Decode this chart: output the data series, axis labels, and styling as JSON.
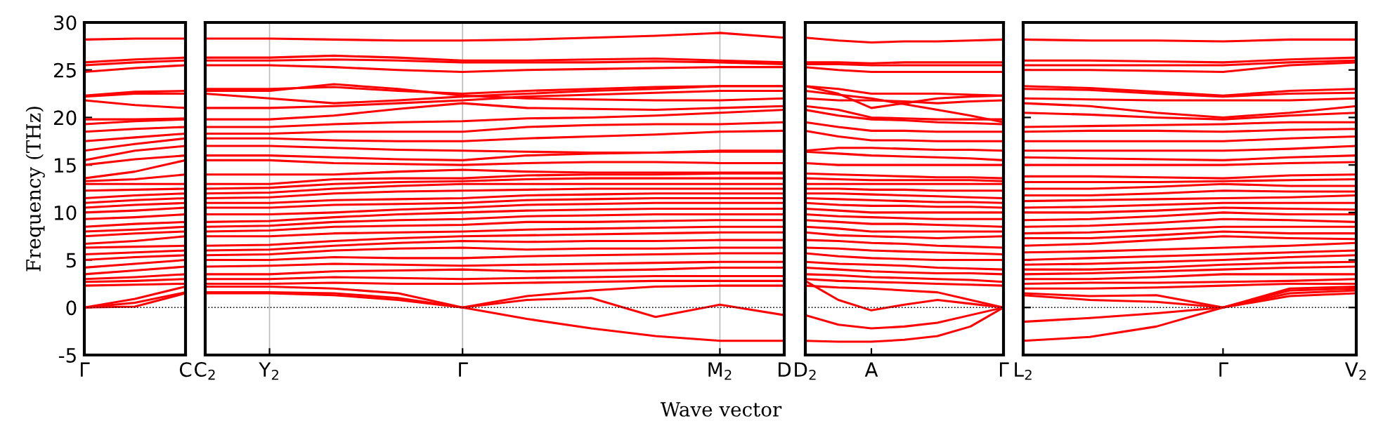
{
  "chart_data": [
    {
      "type": "line",
      "ylabel": "Frequency (THz)",
      "categories": [
        "Γ",
        null,
        "C"
      ],
      "ylim": [
        -5,
        30
      ],
      "yticks": [
        -5,
        0,
        5,
        10,
        15,
        20,
        25,
        30
      ],
      "ref_lines": [
        {
          "axis": "y",
          "value": 0,
          "color": "#000000",
          "line_style": "dotted"
        }
      ],
      "series": [
        {
          "color": "#ff0000",
          "values": [
            0,
            0.1,
            1.5
          ]
        },
        {
          "color": "#ff0000",
          "values": [
            0,
            0.5,
            1.6
          ]
        },
        {
          "color": "#ff0000",
          "values": [
            0,
            0.9,
            2.2
          ]
        },
        {
          "color": "#ff0000",
          "values": [
            2.3,
            2.4,
            2.5
          ]
        },
        {
          "color": "#ff0000",
          "values": [
            2.7,
            2.8,
            3.0
          ]
        },
        {
          "color": "#ff0000",
          "values": [
            3.0,
            3.2,
            3.5
          ]
        },
        {
          "color": "#ff0000",
          "values": [
            3.5,
            3.9,
            4.3
          ]
        },
        {
          "color": "#ff0000",
          "values": [
            4.2,
            4.6,
            5.0
          ]
        },
        {
          "color": "#ff0000",
          "values": [
            5.0,
            5.3,
            5.5
          ]
        },
        {
          "color": "#ff0000",
          "values": [
            5.6,
            5.8,
            6.0
          ]
        },
        {
          "color": "#ff0000",
          "values": [
            6.3,
            6.4,
            6.5
          ]
        },
        {
          "color": "#ff0000",
          "values": [
            6.7,
            7.0,
            7.5
          ]
        },
        {
          "color": "#ff0000",
          "values": [
            7.5,
            7.8,
            8.0
          ]
        },
        {
          "color": "#ff0000",
          "values": [
            8.0,
            8.2,
            8.5
          ]
        },
        {
          "color": "#ff0000",
          "values": [
            8.5,
            8.8,
            9.0
          ]
        },
        {
          "color": "#ff0000",
          "values": [
            9.3,
            9.5,
            9.8
          ]
        },
        {
          "color": "#ff0000",
          "values": [
            10.0,
            10.2,
            10.5
          ]
        },
        {
          "color": "#ff0000",
          "values": [
            10.5,
            10.8,
            11.0
          ]
        },
        {
          "color": "#ff0000",
          "values": [
            11.0,
            11.3,
            11.5
          ]
        },
        {
          "color": "#ff0000",
          "values": [
            11.5,
            11.8,
            12.0
          ]
        },
        {
          "color": "#ff0000",
          "values": [
            12.3,
            12.4,
            12.5
          ]
        },
        {
          "color": "#ff0000",
          "values": [
            13.0,
            13.0,
            13.0
          ]
        },
        {
          "color": "#ff0000",
          "values": [
            13.3,
            13.5,
            14.0
          ]
        },
        {
          "color": "#ff0000",
          "values": [
            13.6,
            14.3,
            15.5
          ]
        },
        {
          "color": "#ff0000",
          "values": [
            15.0,
            15.6,
            16.0
          ]
        },
        {
          "color": "#ff0000",
          "values": [
            15.5,
            16.5,
            17.0
          ]
        },
        {
          "color": "#ff0000",
          "values": [
            16.5,
            17.2,
            17.8
          ]
        },
        {
          "color": "#ff0000",
          "values": [
            17.5,
            17.9,
            18.3
          ]
        },
        {
          "color": "#ff0000",
          "values": [
            18.5,
            18.8,
            19.0
          ]
        },
        {
          "color": "#ff0000",
          "values": [
            19.3,
            19.6,
            19.8
          ]
        },
        {
          "color": "#ff0000",
          "values": [
            19.8,
            19.8,
            19.9
          ]
        },
        {
          "color": "#ff0000",
          "values": [
            21.8,
            21.3,
            21.0
          ]
        },
        {
          "color": "#ff0000",
          "values": [
            22.2,
            22.5,
            22.5
          ]
        },
        {
          "color": "#ff0000",
          "values": [
            22.3,
            22.7,
            22.8
          ]
        },
        {
          "color": "#ff0000",
          "values": [
            24.8,
            25.2,
            25.5
          ]
        },
        {
          "color": "#ff0000",
          "values": [
            25.5,
            25.8,
            26.0
          ]
        },
        {
          "color": "#ff0000",
          "values": [
            25.8,
            26.1,
            26.3
          ]
        },
        {
          "color": "#ff0000",
          "values": [
            28.2,
            28.3,
            28.3
          ]
        }
      ]
    },
    {
      "type": "line",
      "xlabel": "Wave vector",
      "categories": [
        "C$_{2}$",
        "Y$_{2}$",
        null,
        null,
        "Γ",
        null,
        null,
        null,
        "M$_{2}$",
        "D"
      ],
      "ylim": [
        -5,
        30
      ],
      "yticks": [
        -5,
        0,
        5,
        10,
        15,
        20,
        25,
        30
      ],
      "grid": "x",
      "ref_lines": [
        {
          "axis": "y",
          "value": 0,
          "color": "#000000",
          "line_style": "dotted"
        }
      ],
      "tick_labels": "x",
      "series": [
        {
          "color": "#ff0000",
          "values": [
            1.5,
            1.5,
            1.3,
            0.8,
            0,
            -1.2,
            -2.2,
            -3.0,
            -3.5,
            -3.5
          ]
        },
        {
          "color": "#ff0000",
          "values": [
            1.6,
            1.6,
            1.5,
            1.0,
            0,
            0.8,
            1.0,
            -1.0,
            0.3,
            -0.8
          ]
        },
        {
          "color": "#ff0000",
          "values": [
            2.2,
            2.2,
            2.0,
            1.5,
            0,
            1.2,
            1.8,
            2.2,
            2.3,
            2.3
          ]
        },
        {
          "color": "#ff0000",
          "values": [
            2.5,
            2.5,
            2.6,
            2.5,
            2.5,
            2.6,
            2.7,
            2.8,
            2.8,
            2.8
          ]
        },
        {
          "color": "#ff0000",
          "values": [
            3.0,
            3.0,
            3.2,
            3.1,
            3.0,
            3.1,
            3.2,
            3.3,
            3.3,
            3.3
          ]
        },
        {
          "color": "#ff0000",
          "values": [
            3.5,
            3.5,
            3.8,
            3.9,
            4.0,
            3.8,
            3.9,
            4.0,
            4.2,
            4.2
          ]
        },
        {
          "color": "#ff0000",
          "values": [
            4.3,
            4.4,
            4.6,
            4.5,
            4.4,
            4.5,
            4.6,
            4.7,
            4.8,
            4.8
          ]
        },
        {
          "color": "#ff0000",
          "values": [
            5.0,
            5.0,
            5.3,
            5.2,
            5.2,
            5.4,
            5.5,
            5.6,
            5.7,
            5.7
          ]
        },
        {
          "color": "#ff0000",
          "values": [
            5.5,
            5.6,
            6.0,
            6.2,
            6.3,
            6.1,
            6.2,
            6.2,
            6.3,
            6.3
          ]
        },
        {
          "color": "#ff0000",
          "values": [
            6.0,
            6.1,
            6.5,
            6.8,
            7.0,
            6.9,
            7.0,
            7.0,
            7.1,
            7.1
          ]
        },
        {
          "color": "#ff0000",
          "values": [
            6.5,
            6.6,
            7.0,
            7.3,
            7.5,
            7.6,
            7.7,
            7.8,
            7.9,
            7.9
          ]
        },
        {
          "color": "#ff0000",
          "values": [
            7.5,
            7.5,
            7.8,
            7.9,
            8.0,
            8.2,
            8.3,
            8.4,
            8.5,
            8.5
          ]
        },
        {
          "color": "#ff0000",
          "values": [
            8.0,
            8.1,
            8.5,
            8.6,
            8.7,
            9.0,
            9.0,
            9.1,
            9.2,
            9.2
          ]
        },
        {
          "color": "#ff0000",
          "values": [
            8.5,
            8.6,
            9.0,
            9.2,
            9.3,
            9.6,
            9.7,
            9.8,
            9.8,
            9.8
          ]
        },
        {
          "color": "#ff0000",
          "values": [
            9.0,
            9.1,
            9.5,
            9.8,
            10.0,
            10.2,
            10.3,
            10.4,
            10.4,
            10.4
          ]
        },
        {
          "color": "#ff0000",
          "values": [
            9.8,
            9.8,
            10.0,
            10.3,
            10.5,
            10.8,
            10.9,
            11.0,
            11.0,
            11.0
          ]
        },
        {
          "color": "#ff0000",
          "values": [
            10.5,
            10.5,
            10.8,
            10.9,
            11.0,
            11.3,
            11.4,
            11.5,
            11.5,
            11.5
          ]
        },
        {
          "color": "#ff0000",
          "values": [
            11.0,
            11.0,
            11.3,
            11.4,
            11.5,
            11.8,
            11.9,
            12.0,
            12.0,
            12.0
          ]
        },
        {
          "color": "#ff0000",
          "values": [
            11.5,
            11.6,
            12.0,
            12.2,
            12.3,
            12.4,
            12.5,
            12.5,
            12.5,
            12.5
          ]
        },
        {
          "color": "#ff0000",
          "values": [
            12.0,
            12.1,
            12.5,
            12.8,
            13.0,
            13.0,
            13.0,
            13.0,
            13.0,
            13.0
          ]
        },
        {
          "color": "#ff0000",
          "values": [
            12.5,
            12.6,
            13.0,
            13.2,
            13.3,
            13.5,
            13.6,
            13.6,
            13.6,
            13.6
          ]
        },
        {
          "color": "#ff0000",
          "values": [
            13.0,
            13.0,
            13.5,
            13.6,
            13.6,
            13.9,
            14.0,
            14.0,
            14.1,
            14.1
          ]
        },
        {
          "color": "#ff0000",
          "values": [
            14.0,
            14.0,
            14.0,
            14.3,
            14.5,
            14.3,
            14.2,
            14.2,
            14.2,
            14.2
          ]
        },
        {
          "color": "#ff0000",
          "values": [
            15.5,
            15.5,
            15.2,
            15.1,
            15.0,
            15.2,
            15.3,
            15.3,
            15.2,
            15.2
          ]
        },
        {
          "color": "#ff0000",
          "values": [
            16.0,
            16.0,
            15.8,
            15.6,
            15.5,
            16.0,
            16.2,
            16.3,
            16.5,
            16.5
          ]
        },
        {
          "color": "#ff0000",
          "values": [
            17.0,
            17.0,
            16.8,
            16.6,
            16.5,
            16.4,
            16.3,
            16.3,
            16.4,
            16.4
          ]
        },
        {
          "color": "#ff0000",
          "values": [
            17.8,
            17.8,
            17.6,
            17.5,
            17.5,
            17.8,
            18.0,
            18.2,
            18.5,
            18.6
          ]
        },
        {
          "color": "#ff0000",
          "values": [
            18.3,
            18.3,
            18.5,
            18.5,
            18.5,
            19.0,
            19.2,
            19.3,
            19.3,
            19.5
          ]
        },
        {
          "color": "#ff0000",
          "values": [
            19.0,
            19.0,
            19.3,
            19.5,
            19.6,
            19.9,
            20.0,
            20.2,
            20.5,
            20.8
          ]
        },
        {
          "color": "#ff0000",
          "values": [
            19.8,
            19.8,
            20.2,
            20.9,
            21.5,
            21.0,
            20.9,
            20.8,
            21.0,
            21.2
          ]
        },
        {
          "color": "#ff0000",
          "values": [
            21.0,
            21.0,
            21.2,
            21.5,
            21.8,
            22.2,
            22.4,
            22.6,
            22.8,
            22.8
          ]
        },
        {
          "color": "#ff0000",
          "values": [
            22.5,
            22.0,
            21.5,
            21.8,
            22.2,
            22.5,
            22.8,
            23.0,
            23.3,
            23.3
          ]
        },
        {
          "color": "#ff0000",
          "values": [
            22.8,
            22.8,
            23.5,
            23.0,
            22.3,
            22.0,
            21.9,
            21.8,
            21.8,
            22.0
          ]
        },
        {
          "color": "#ff0000",
          "values": [
            23.0,
            23.0,
            23.2,
            22.8,
            22.5,
            22.8,
            23.0,
            23.2,
            23.3,
            23.3
          ]
        },
        {
          "color": "#ff0000",
          "values": [
            25.5,
            25.5,
            25.3,
            25.0,
            24.8,
            25.0,
            25.1,
            25.2,
            25.3,
            25.3
          ]
        },
        {
          "color": "#ff0000",
          "values": [
            26.0,
            26.0,
            26.1,
            26.0,
            25.8,
            25.8,
            25.8,
            25.9,
            25.8,
            25.6
          ]
        },
        {
          "color": "#ff0000",
          "values": [
            26.3,
            26.3,
            26.5,
            26.3,
            26.0,
            26.0,
            26.1,
            26.2,
            26.0,
            25.8
          ]
        },
        {
          "color": "#ff0000",
          "values": [
            28.3,
            28.3,
            28.2,
            28.1,
            28.1,
            28.2,
            28.4,
            28.6,
            28.9,
            28.4
          ]
        }
      ]
    },
    {
      "type": "line",
      "categories": [
        "D$_{2}$",
        null,
        "A",
        null,
        null,
        null,
        "Γ"
      ],
      "ylim": [
        -5,
        30
      ],
      "yticks": [
        -5,
        0,
        5,
        10,
        15,
        20,
        25,
        30
      ],
      "ref_lines": [
        {
          "axis": "y",
          "value": 0,
          "color": "#000000",
          "line_style": "dotted"
        }
      ],
      "tick_labels": "x",
      "series": [
        {
          "color": "#ff0000",
          "values": [
            -3.5,
            -3.6,
            -3.6,
            -3.4,
            -3.0,
            -2.0,
            0
          ]
        },
        {
          "color": "#ff0000",
          "values": [
            -0.8,
            -1.8,
            -2.2,
            -2.0,
            -1.6,
            -0.8,
            0
          ]
        },
        {
          "color": "#ff0000",
          "values": [
            2.8,
            0.8,
            -0.3,
            0.3,
            0.8,
            0.4,
            0
          ]
        },
        {
          "color": "#ff0000",
          "values": [
            2.3,
            2.1,
            2.0,
            1.8,
            1.6,
            0.8,
            0
          ]
        },
        {
          "color": "#ff0000",
          "values": [
            3.0,
            2.8,
            2.7,
            2.6,
            2.5,
            2.4,
            2.3
          ]
        },
        {
          "color": "#ff0000",
          "values": [
            3.5,
            3.4,
            3.2,
            3.1,
            3.0,
            2.9,
            2.7
          ]
        },
        {
          "color": "#ff0000",
          "values": [
            4.2,
            4.0,
            3.8,
            3.7,
            3.6,
            3.6,
            3.5
          ]
        },
        {
          "color": "#ff0000",
          "values": [
            4.8,
            4.6,
            4.5,
            4.4,
            4.2,
            4.1,
            4.0
          ]
        },
        {
          "color": "#ff0000",
          "values": [
            5.7,
            5.4,
            5.2,
            5.1,
            5.0,
            5.0,
            5.0
          ]
        },
        {
          "color": "#ff0000",
          "values": [
            6.3,
            6.2,
            6.0,
            5.9,
            5.8,
            5.7,
            5.6
          ]
        },
        {
          "color": "#ff0000",
          "values": [
            7.1,
            7.0,
            6.8,
            6.7,
            6.5,
            6.4,
            6.3
          ]
        },
        {
          "color": "#ff0000",
          "values": [
            7.9,
            7.6,
            7.5,
            7.4,
            7.3,
            7.4,
            7.5
          ]
        },
        {
          "color": "#ff0000",
          "values": [
            8.5,
            8.3,
            8.0,
            8.0,
            8.0,
            8.0,
            8.0
          ]
        },
        {
          "color": "#ff0000",
          "values": [
            9.2,
            9.0,
            8.8,
            8.8,
            8.7,
            8.6,
            8.5
          ]
        },
        {
          "color": "#ff0000",
          "values": [
            9.8,
            9.6,
            9.5,
            9.4,
            9.3,
            9.3,
            9.3
          ]
        },
        {
          "color": "#ff0000",
          "values": [
            10.4,
            10.2,
            10.0,
            10.0,
            10.0,
            10.0,
            10.0
          ]
        },
        {
          "color": "#ff0000",
          "values": [
            11.0,
            10.8,
            10.7,
            10.7,
            10.6,
            10.6,
            10.5
          ]
        },
        {
          "color": "#ff0000",
          "values": [
            11.5,
            11.4,
            11.3,
            11.2,
            11.1,
            11.1,
            11.0
          ]
        },
        {
          "color": "#ff0000",
          "values": [
            12.0,
            12.0,
            11.9,
            11.8,
            11.7,
            11.6,
            11.5
          ]
        },
        {
          "color": "#ff0000",
          "values": [
            12.5,
            12.5,
            12.4,
            12.4,
            12.3,
            12.3,
            12.3
          ]
        },
        {
          "color": "#ff0000",
          "values": [
            13.0,
            13.0,
            13.0,
            13.0,
            13.0,
            13.0,
            13.0
          ]
        },
        {
          "color": "#ff0000",
          "values": [
            13.6,
            13.5,
            13.4,
            13.4,
            13.4,
            13.4,
            13.3
          ]
        },
        {
          "color": "#ff0000",
          "values": [
            14.1,
            14.0,
            13.9,
            13.8,
            13.7,
            13.7,
            13.6
          ]
        },
        {
          "color": "#ff0000",
          "values": [
            15.2,
            15.0,
            15.0,
            15.0,
            15.0,
            15.0,
            15.0
          ]
        },
        {
          "color": "#ff0000",
          "values": [
            16.4,
            16.2,
            16.0,
            15.9,
            15.8,
            15.7,
            15.5
          ]
        },
        {
          "color": "#ff0000",
          "values": [
            16.5,
            16.8,
            16.8,
            16.7,
            16.6,
            16.6,
            16.5
          ]
        },
        {
          "color": "#ff0000",
          "values": [
            18.6,
            18.0,
            17.6,
            17.6,
            17.5,
            17.5,
            17.5
          ]
        },
        {
          "color": "#ff0000",
          "values": [
            19.5,
            19.0,
            18.6,
            18.6,
            18.5,
            18.5,
            18.5
          ]
        },
        {
          "color": "#ff0000",
          "values": [
            20.8,
            20.2,
            19.8,
            19.7,
            19.5,
            19.4,
            19.3
          ]
        },
        {
          "color": "#ff0000",
          "values": [
            21.2,
            20.8,
            20.0,
            19.9,
            19.8,
            19.8,
            19.8
          ]
        },
        {
          "color": "#ff0000",
          "values": [
            22.0,
            21.8,
            21.8,
            21.7,
            21.5,
            21.7,
            21.8
          ]
        },
        {
          "color": "#ff0000",
          "values": [
            22.8,
            22.4,
            22.0,
            21.4,
            20.8,
            20.2,
            19.5
          ]
        },
        {
          "color": "#ff0000",
          "values": [
            23.3,
            22.5,
            21.0,
            21.5,
            22.0,
            22.2,
            22.3
          ]
        },
        {
          "color": "#ff0000",
          "values": [
            23.3,
            23.0,
            22.5,
            22.5,
            22.5,
            22.4,
            22.3
          ]
        },
        {
          "color": "#ff0000",
          "values": [
            25.3,
            25.0,
            24.8,
            24.8,
            24.8,
            24.8,
            24.8
          ]
        },
        {
          "color": "#ff0000",
          "values": [
            25.6,
            25.6,
            25.5,
            25.5,
            25.5,
            25.5,
            25.5
          ]
        },
        {
          "color": "#ff0000",
          "values": [
            25.8,
            25.8,
            25.7,
            25.8,
            25.8,
            25.8,
            25.8
          ]
        },
        {
          "color": "#ff0000",
          "values": [
            28.4,
            28.1,
            27.9,
            28.0,
            28.0,
            28.1,
            28.2
          ]
        }
      ]
    },
    {
      "type": "line",
      "categories": [
        "L$_{2}$",
        null,
        null,
        "Γ",
        null,
        "V$_{2}$"
      ],
      "ylim": [
        -5,
        30
      ],
      "yticks": [
        -5,
        0,
        5,
        10,
        15,
        20,
        25,
        30
      ],
      "ref_lines": [
        {
          "axis": "y",
          "value": 0,
          "color": "#000000",
          "line_style": "dotted"
        }
      ],
      "tick_labels": "x",
      "series": [
        {
          "color": "#ff0000",
          "values": [
            -3.5,
            -3.1,
            -2.0,
            0,
            1.2,
            1.5
          ]
        },
        {
          "color": "#ff0000",
          "values": [
            -1.5,
            -1.1,
            -0.6,
            0,
            1.5,
            1.8
          ]
        },
        {
          "color": "#ff0000",
          "values": [
            1.3,
            0.8,
            0.6,
            0,
            1.8,
            2.0
          ]
        },
        {
          "color": "#ff0000",
          "values": [
            1.5,
            1.2,
            1.3,
            0,
            2.0,
            2.2
          ]
        },
        {
          "color": "#ff0000",
          "values": [
            2.0,
            2.0,
            2.1,
            2.3,
            2.5,
            2.5
          ]
        },
        {
          "color": "#ff0000",
          "values": [
            2.5,
            2.6,
            2.6,
            2.7,
            2.8,
            3.0
          ]
        },
        {
          "color": "#ff0000",
          "values": [
            3.0,
            3.0,
            3.2,
            3.5,
            3.5,
            3.5
          ]
        },
        {
          "color": "#ff0000",
          "values": [
            3.5,
            3.6,
            3.8,
            4.0,
            4.2,
            4.3
          ]
        },
        {
          "color": "#ff0000",
          "values": [
            4.0,
            4.0,
            4.2,
            4.5,
            4.7,
            4.8
          ]
        },
        {
          "color": "#ff0000",
          "values": [
            4.5,
            4.6,
            4.8,
            5.0,
            5.3,
            5.5
          ]
        },
        {
          "color": "#ff0000",
          "values": [
            5.0,
            5.2,
            5.4,
            5.6,
            5.8,
            6.0
          ]
        },
        {
          "color": "#ff0000",
          "values": [
            5.8,
            5.9,
            6.1,
            6.3,
            6.5,
            6.8
          ]
        },
        {
          "color": "#ff0000",
          "values": [
            6.5,
            6.7,
            7.1,
            7.5,
            7.3,
            7.2
          ]
        },
        {
          "color": "#ff0000",
          "values": [
            7.3,
            7.3,
            7.6,
            8.0,
            7.8,
            7.8
          ]
        },
        {
          "color": "#ff0000",
          "values": [
            7.8,
            7.9,
            8.2,
            8.5,
            8.5,
            8.5
          ]
        },
        {
          "color": "#ff0000",
          "values": [
            8.5,
            8.6,
            8.9,
            9.3,
            9.2,
            9.0
          ]
        },
        {
          "color": "#ff0000",
          "values": [
            9.2,
            9.3,
            9.6,
            10.0,
            9.8,
            9.8
          ]
        },
        {
          "color": "#ff0000",
          "values": [
            10.0,
            10.0,
            10.2,
            10.5,
            10.4,
            10.3
          ]
        },
        {
          "color": "#ff0000",
          "values": [
            10.5,
            10.6,
            10.8,
            11.0,
            11.0,
            11.0
          ]
        },
        {
          "color": "#ff0000",
          "values": [
            11.2,
            11.3,
            11.4,
            11.5,
            11.6,
            11.8
          ]
        },
        {
          "color": "#ff0000",
          "values": [
            11.8,
            11.8,
            12.0,
            12.3,
            12.2,
            12.2
          ]
        },
        {
          "color": "#ff0000",
          "values": [
            12.5,
            12.5,
            12.7,
            13.0,
            12.8,
            12.8
          ]
        },
        {
          "color": "#ff0000",
          "values": [
            13.2,
            13.2,
            13.2,
            13.3,
            13.4,
            13.5
          ]
        },
        {
          "color": "#ff0000",
          "values": [
            13.8,
            13.8,
            13.7,
            13.6,
            13.9,
            14.0
          ]
        },
        {
          "color": "#ff0000",
          "values": [
            15.0,
            15.0,
            15.0,
            15.0,
            15.2,
            15.3
          ]
        },
        {
          "color": "#ff0000",
          "values": [
            15.8,
            15.7,
            15.6,
            15.5,
            15.8,
            16.0
          ]
        },
        {
          "color": "#ff0000",
          "values": [
            16.5,
            16.5,
            16.5,
            16.5,
            16.7,
            17.0
          ]
        },
        {
          "color": "#ff0000",
          "values": [
            17.5,
            17.5,
            17.5,
            17.5,
            17.8,
            18.0
          ]
        },
        {
          "color": "#ff0000",
          "values": [
            18.5,
            18.6,
            18.6,
            18.5,
            18.7,
            18.8
          ]
        },
        {
          "color": "#ff0000",
          "values": [
            19.0,
            19.1,
            19.2,
            19.3,
            19.5,
            19.5
          ]
        },
        {
          "color": "#ff0000",
          "values": [
            20.5,
            20.3,
            20.0,
            19.8,
            20.2,
            20.5
          ]
        },
        {
          "color": "#ff0000",
          "values": [
            21.5,
            21.2,
            20.5,
            20.0,
            20.5,
            21.2
          ]
        },
        {
          "color": "#ff0000",
          "values": [
            22.0,
            21.9,
            21.8,
            21.8,
            21.8,
            22.0
          ]
        },
        {
          "color": "#ff0000",
          "values": [
            23.0,
            22.9,
            22.5,
            22.2,
            22.5,
            22.6
          ]
        },
        {
          "color": "#ff0000",
          "values": [
            23.3,
            23.1,
            22.7,
            22.3,
            22.8,
            23.0
          ]
        },
        {
          "color": "#ff0000",
          "values": [
            25.0,
            25.0,
            24.9,
            24.8,
            25.5,
            25.8
          ]
        },
        {
          "color": "#ff0000",
          "values": [
            25.5,
            25.5,
            25.5,
            25.5,
            25.8,
            26.0
          ]
        },
        {
          "color": "#ff0000",
          "values": [
            26.0,
            26.0,
            25.9,
            25.8,
            26.1,
            26.3
          ]
        },
        {
          "color": "#ff0000",
          "values": [
            28.2,
            28.1,
            28.1,
            28.0,
            28.2,
            28.2
          ]
        }
      ]
    }
  ]
}
